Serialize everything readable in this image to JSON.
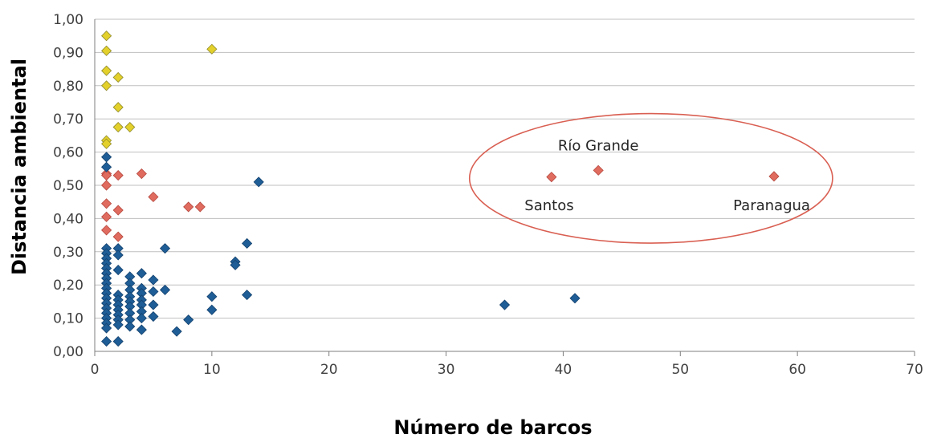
{
  "chart_data": {
    "type": "scatter",
    "title": "",
    "xlabel": "Número de barcos",
    "ylabel": "Distancia ambiental",
    "xlim": [
      0,
      70
    ],
    "ylim": [
      0,
      1
    ],
    "x_ticks": [
      0,
      10,
      20,
      30,
      40,
      50,
      60,
      70
    ],
    "y_ticks": [
      0,
      0.1,
      0.2,
      0.3,
      0.4,
      0.5,
      0.6,
      0.7,
      0.8,
      0.9,
      1.0
    ],
    "x_tick_labels": [
      "0",
      "10",
      "20",
      "30",
      "40",
      "50",
      "60",
      "70"
    ],
    "y_tick_labels": [
      "0,00",
      "0,10",
      "0,20",
      "0,30",
      "0,40",
      "0,50",
      "0,60",
      "0,70",
      "0,80",
      "0,90",
      "1,00"
    ],
    "grid": "horizontal",
    "marker": "diamond",
    "series": [
      {
        "color": "#e3d02b",
        "stroke": "#8f8a2a",
        "points": [
          [
            1,
            0.95
          ],
          [
            1,
            0.905
          ],
          [
            1,
            0.845
          ],
          [
            1,
            0.8
          ],
          [
            1,
            0.635
          ],
          [
            1,
            0.625
          ],
          [
            2,
            0.825
          ],
          [
            2,
            0.735
          ],
          [
            2,
            0.675
          ],
          [
            3,
            0.675
          ],
          [
            10,
            0.91
          ]
        ]
      },
      {
        "color": "#e06b5f",
        "stroke": "#b5483e",
        "points": [
          [
            1,
            0.535
          ],
          [
            1,
            0.53
          ],
          [
            1,
            0.5
          ],
          [
            1,
            0.445
          ],
          [
            1,
            0.405
          ],
          [
            1,
            0.365
          ],
          [
            2,
            0.53
          ],
          [
            2,
            0.425
          ],
          [
            2,
            0.345
          ],
          [
            4,
            0.535
          ],
          [
            5,
            0.465
          ],
          [
            8,
            0.435
          ],
          [
            9,
            0.435
          ],
          [
            39,
            0.525
          ],
          [
            43,
            0.545
          ],
          [
            58,
            0.527
          ]
        ]
      },
      {
        "color": "#1f5d96",
        "stroke": "#14426e",
        "points": [
          [
            1,
            0.585
          ],
          [
            1,
            0.555
          ],
          [
            1,
            0.31
          ],
          [
            1,
            0.295
          ],
          [
            1,
            0.28
          ],
          [
            1,
            0.265
          ],
          [
            1,
            0.25
          ],
          [
            1,
            0.235
          ],
          [
            1,
            0.22
          ],
          [
            1,
            0.205
          ],
          [
            1,
            0.19
          ],
          [
            1,
            0.175
          ],
          [
            1,
            0.16
          ],
          [
            1,
            0.145
          ],
          [
            1,
            0.13
          ],
          [
            1,
            0.115
          ],
          [
            1,
            0.1
          ],
          [
            1,
            0.085
          ],
          [
            1,
            0.07
          ],
          [
            1,
            0.03
          ],
          [
            2,
            0.31
          ],
          [
            2,
            0.29
          ],
          [
            2,
            0.245
          ],
          [
            2,
            0.17
          ],
          [
            2,
            0.155
          ],
          [
            2,
            0.14
          ],
          [
            2,
            0.125
          ],
          [
            2,
            0.11
          ],
          [
            2,
            0.095
          ],
          [
            2,
            0.08
          ],
          [
            2,
            0.03
          ],
          [
            3,
            0.225
          ],
          [
            3,
            0.205
          ],
          [
            3,
            0.185
          ],
          [
            3,
            0.165
          ],
          [
            3,
            0.15
          ],
          [
            3,
            0.135
          ],
          [
            3,
            0.115
          ],
          [
            3,
            0.095
          ],
          [
            3,
            0.075
          ],
          [
            4,
            0.235
          ],
          [
            4,
            0.19
          ],
          [
            4,
            0.175
          ],
          [
            4,
            0.155
          ],
          [
            4,
            0.14
          ],
          [
            4,
            0.12
          ],
          [
            4,
            0.1
          ],
          [
            4,
            0.065
          ],
          [
            5,
            0.215
          ],
          [
            5,
            0.18
          ],
          [
            5,
            0.14
          ],
          [
            5,
            0.105
          ],
          [
            6,
            0.31
          ],
          [
            6,
            0.185
          ],
          [
            7,
            0.06
          ],
          [
            8,
            0.095
          ],
          [
            10,
            0.165
          ],
          [
            10,
            0.125
          ],
          [
            12,
            0.27
          ],
          [
            12,
            0.26
          ],
          [
            13,
            0.325
          ],
          [
            13,
            0.17
          ],
          [
            14,
            0.51
          ],
          [
            35,
            0.14
          ],
          [
            41,
            0.16
          ]
        ]
      }
    ],
    "annotations": [
      {
        "text": "Río Grande",
        "x": 43,
        "y": 0.62
      },
      {
        "text": "Santos",
        "x": 38.8,
        "y": 0.44
      },
      {
        "text": "Paranagua",
        "x": 57.8,
        "y": 0.44
      }
    ],
    "highlight_ellipse": {
      "x_center": 47.5,
      "y_center": 0.521,
      "x_radius": 15.5,
      "y_radius": 0.195,
      "color": "#d95f52"
    }
  }
}
